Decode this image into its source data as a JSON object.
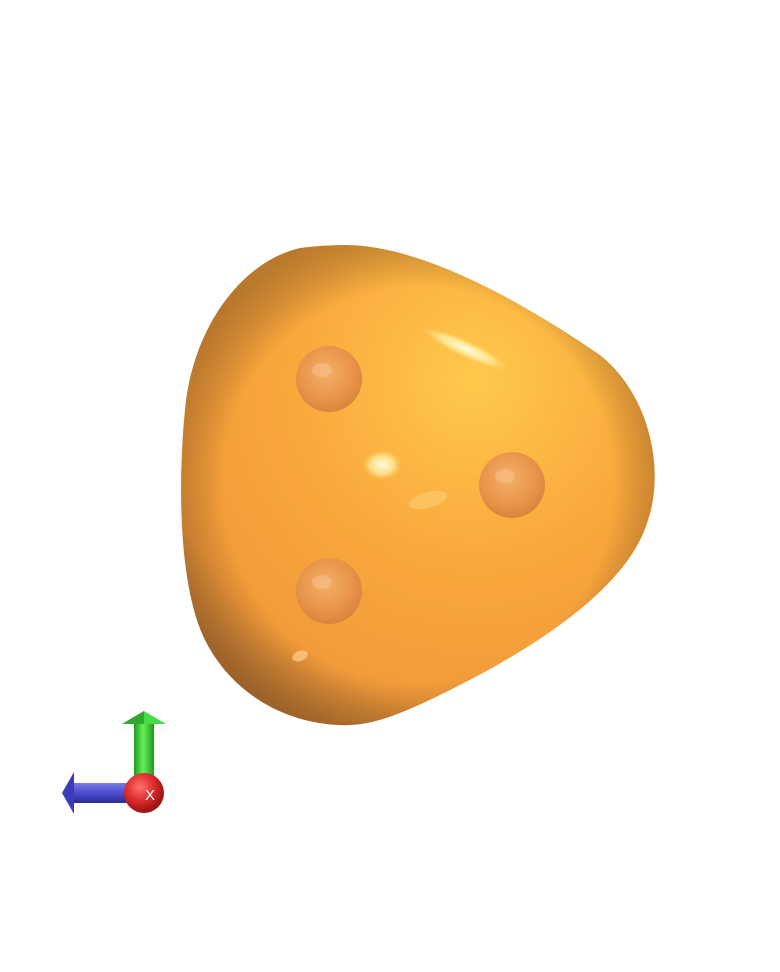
{
  "scene": {
    "background": "#ffffff",
    "isosurface": {
      "color_base": "#f7a23c",
      "color_light": "#ffc54a",
      "color_dark": "#c47a32"
    },
    "atoms": [
      {
        "name": "atom-upper-left"
      },
      {
        "name": "atom-right"
      },
      {
        "name": "atom-lower-left"
      }
    ],
    "axes": {
      "y_axis_color": "#33cc33",
      "z_axis_color": "#4444cc",
      "x_axis_color": "#dd2222",
      "x_label": "X"
    }
  }
}
